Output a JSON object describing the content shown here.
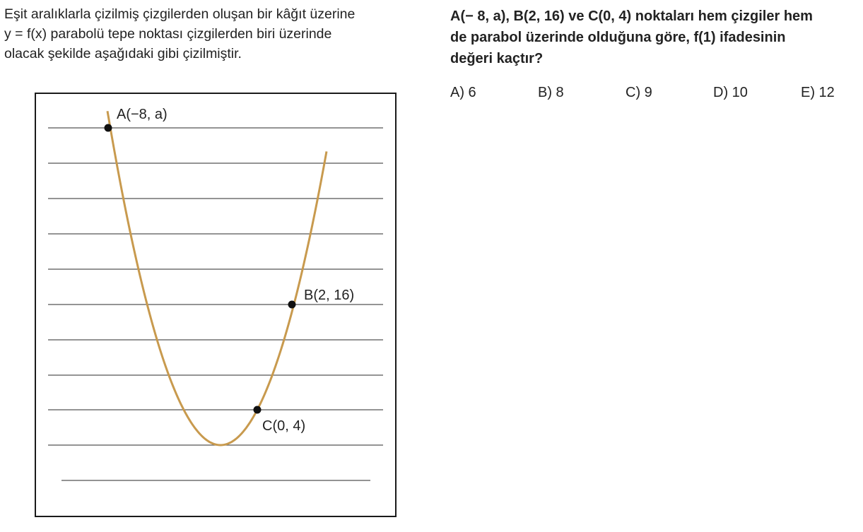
{
  "intro": {
    "lines": [
      "Eşit aralıklarla çizilmiş çizgilerden oluşan bir kâğıt üzerine",
      "y = f(x) parabolü tepe noktası çizgilerden biri üzerinde",
      "olacak şekilde aşağıdaki gibi çizilmiştir."
    ]
  },
  "figure": {
    "points": [
      {
        "name": "A",
        "label": "A(−8, a)"
      },
      {
        "name": "B",
        "label": "B(2, 16)"
      },
      {
        "name": "C",
        "label": "C(0, 4)"
      }
    ],
    "colors": {
      "curve": "#c89a4e",
      "lines": "#555555",
      "frame": "#1a1a1a",
      "points": "#111111"
    }
  },
  "question": {
    "lines": [
      "A(− 8, a), B(2, 16) ve C(0, 4) noktaları hem çizgiler hem",
      "de parabol üzerinde olduğuna göre, f(1) ifadesinin",
      "değeri kaçtır?"
    ]
  },
  "options": [
    {
      "key": "A",
      "label": "A) 6"
    },
    {
      "key": "B",
      "label": "B) 8"
    },
    {
      "key": "C",
      "label": "C) 9"
    },
    {
      "key": "D",
      "label": "D) 10"
    },
    {
      "key": "E",
      "label": "E) 12"
    }
  ]
}
